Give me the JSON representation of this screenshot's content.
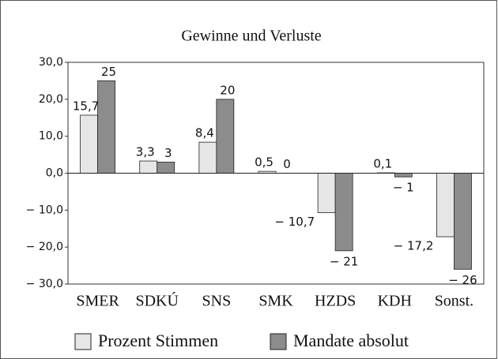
{
  "chart_data": {
    "type": "bar",
    "title": "Gewinne und Verluste",
    "categories": [
      "SMER",
      "SDKÚ",
      "SNS",
      "SMK",
      "HZDS",
      "KDH",
      "Sonst."
    ],
    "series": [
      {
        "name": "Prozent Stimmen",
        "color": "#e6e6e6",
        "values": [
          15.7,
          3.3,
          8.4,
          0.5,
          -10.7,
          0.1,
          -17.2
        ],
        "value_labels": [
          "15,7",
          "3,3",
          "8,4",
          "0,5",
          "− 10,7",
          "0,1",
          "− 17,2"
        ]
      },
      {
        "name": "Mandate absolut",
        "color": "#8c8c8c",
        "values": [
          25,
          3,
          20,
          0,
          -21,
          -1,
          -26
        ],
        "value_labels": [
          "25",
          "3",
          "20",
          "0",
          "− 21",
          "− 1",
          "− 26"
        ]
      }
    ],
    "ylim": [
      -30,
      30
    ],
    "yticks": [
      {
        "value": -30,
        "label": "− 30,0"
      },
      {
        "value": -20,
        "label": "− 20,0"
      },
      {
        "value": -10,
        "label": "− 10,0"
      },
      {
        "value": 0,
        "label": "0,0"
      },
      {
        "value": 10,
        "label": "10,0"
      },
      {
        "value": 20,
        "label": "20,0"
      },
      {
        "value": 30,
        "label": "30,0"
      }
    ],
    "legend": "bottom"
  }
}
